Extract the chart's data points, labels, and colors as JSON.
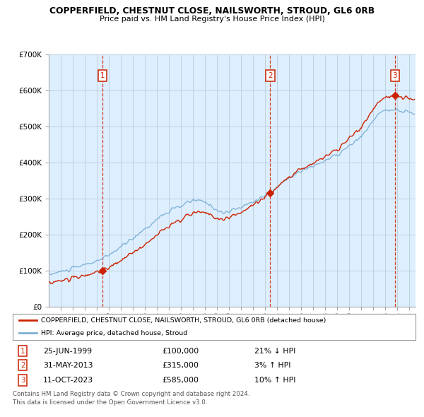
{
  "title": "COPPERFIELD, CHESTNUT CLOSE, NAILSWORTH, STROUD, GL6 0RB",
  "subtitle": "Price paid vs. HM Land Registry's House Price Index (HPI)",
  "legend_line1": "COPPERFIELD, CHESTNUT CLOSE, NAILSWORTH, STROUD, GL6 0RB (detached house)",
  "legend_line2": "HPI: Average price, detached house, Stroud",
  "footer1": "Contains HM Land Registry data © Crown copyright and database right 2024.",
  "footer2": "This data is licensed under the Open Government Licence v3.0.",
  "transactions": [
    {
      "label": "1",
      "date": "25-JUN-1999",
      "price": 100000,
      "pct": "21%",
      "dir": "↓",
      "x": 1999.48
    },
    {
      "label": "2",
      "date": "31-MAY-2013",
      "price": 315000,
      "pct": "3%",
      "dir": "↑",
      "x": 2013.41
    },
    {
      "label": "3",
      "date": "11-OCT-2023",
      "price": 585000,
      "pct": "10%",
      "dir": "↑",
      "x": 2023.78
    }
  ],
  "hpi_color": "#7bafd4",
  "price_color": "#cc2200",
  "transaction_color": "#cc2200",
  "vline_color": "#cc2200",
  "grid_color": "#bbccdd",
  "chart_bg": "#ddeeff",
  "bg_color": "#ffffff",
  "ylim": [
    0,
    700000
  ],
  "yticks": [
    0,
    100000,
    200000,
    300000,
    400000,
    500000,
    600000,
    700000
  ],
  "xlim": [
    1995.0,
    2025.5
  ]
}
